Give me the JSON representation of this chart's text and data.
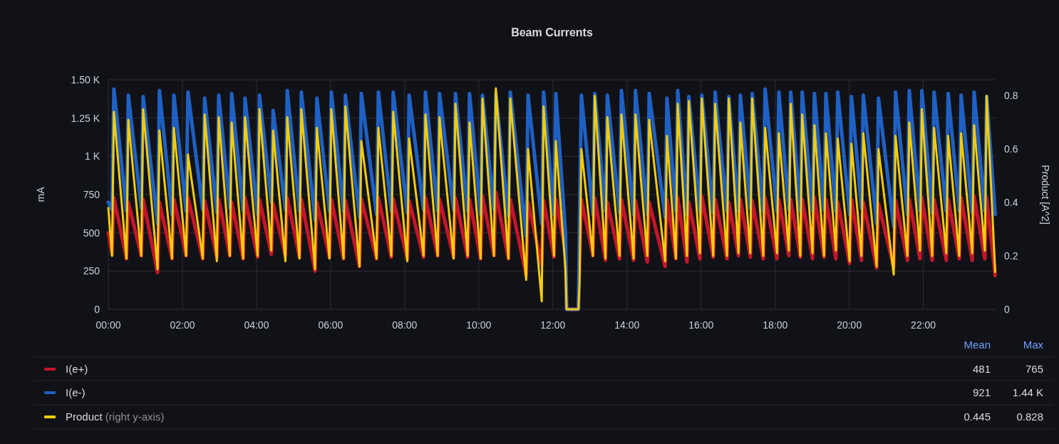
{
  "chart_data": {
    "type": "line",
    "title": "Beam Currents",
    "ylabel": "mA",
    "y2label": "Product [A^2]",
    "x": [
      0,
      0.1,
      0.15,
      0.49,
      0.54,
      0.89,
      0.94,
      1.33,
      1.38,
      1.72,
      1.77,
      2.1,
      2.15,
      2.55,
      2.6,
      2.93,
      2.98,
      3.28,
      3.33,
      3.64,
      3.69,
      4.03,
      4.08,
      4.4,
      4.45,
      4.78,
      4.83,
      5.16,
      5.21,
      5.58,
      5.63,
      5.97,
      6.02,
      6.35,
      6.4,
      6.78,
      6.83,
      7.24,
      7.29,
      7.64,
      7.69,
      8.07,
      8.12,
      8.51,
      8.56,
      8.89,
      8.94,
      9.32,
      9.37,
      9.7,
      9.75,
      10.05,
      10.1,
      10.41,
      10.46,
      10.8,
      10.85,
      11.28,
      11.33,
      11.7,
      11.75,
      12.03,
      12.08,
      12.34,
      12.37,
      12.69,
      12.72,
      12.77,
      13.08,
      13.13,
      13.42,
      13.47,
      13.8,
      13.85,
      14.18,
      14.23,
      14.55,
      14.6,
      15.03,
      15.08,
      15.32,
      15.37,
      15.62,
      15.67,
      15.97,
      16.02,
      16.33,
      16.38,
      16.7,
      16.75,
      17.01,
      17.06,
      17.33,
      17.38,
      17.68,
      17.73,
      18.05,
      18.1,
      18.37,
      18.42,
      18.68,
      18.73,
      19.01,
      19.06,
      19.32,
      19.37,
      19.64,
      19.69,
      20.01,
      20.06,
      20.33,
      20.38,
      20.74,
      20.79,
      21.2,
      21.25,
      21.57,
      21.62,
      21.91,
      21.96,
      22.24,
      22.29,
      22.62,
      22.67,
      22.97,
      23.02,
      23.32,
      23.37,
      23.66,
      23.71,
      23.94
    ],
    "xlim": [
      0,
      23.95
    ],
    "xticks": [
      {
        "value": 0,
        "label": "00:00"
      },
      {
        "value": 2,
        "label": "02:00"
      },
      {
        "value": 4,
        "label": "04:00"
      },
      {
        "value": 6,
        "label": "06:00"
      },
      {
        "value": 8,
        "label": "08:00"
      },
      {
        "value": 10,
        "label": "10:00"
      },
      {
        "value": 12,
        "label": "12:00"
      },
      {
        "value": 14,
        "label": "14:00"
      },
      {
        "value": 16,
        "label": "16:00"
      },
      {
        "value": 18,
        "label": "18:00"
      },
      {
        "value": 20,
        "label": "20:00"
      },
      {
        "value": 22,
        "label": "22:00"
      }
    ],
    "ylim": [
      0,
      1500
    ],
    "yticks": [
      0,
      250,
      500,
      750,
      {
        "value": 1000,
        "label": "1 K"
      },
      {
        "value": 1250,
        "label": "1.25 K"
      },
      {
        "value": 1500,
        "label": "1.50 K"
      }
    ],
    "y2lim": [
      0,
      0.86
    ],
    "y2ticks": [
      0,
      0.2,
      0.4,
      0.6,
      0.8
    ],
    "grid": true,
    "legend": "bottom",
    "series": [
      {
        "name": "I(e+)",
        "color": "#c4162a",
        "values": [
          500,
          360,
          730,
          330,
          700,
          350,
          720,
          240,
          700,
          330,
          720,
          350,
          730,
          330,
          710,
          340,
          720,
          350,
          700,
          330,
          730,
          340,
          720,
          360,
          690,
          350,
          730,
          340,
          720,
          250,
          700,
          340,
          720,
          330,
          710,
          280,
          720,
          330,
          730,
          340,
          720,
          330,
          710,
          340,
          730,
          350,
          720,
          340,
          730,
          340,
          720,
          330,
          740,
          350,
          765,
          330,
          720,
          220,
          700,
          290,
          710,
          340,
          720,
          380,
          0,
          0,
          300,
          720,
          350,
          730,
          320,
          700,
          330,
          720,
          320,
          710,
          310,
          700,
          280,
          720,
          330,
          730,
          310,
          700,
          330,
          740,
          340,
          720,
          330,
          700,
          350,
          720,
          340,
          710,
          330,
          730,
          330,
          720,
          350,
          720,
          340,
          720,
          330,
          730,
          340,
          720,
          330,
          700,
          300,
          720,
          320,
          700,
          270,
          690,
          275,
          710,
          320,
          720,
          330,
          730,
          320,
          720,
          320,
          720,
          330,
          730,
          320,
          740,
          330,
          730,
          220
        ]
      },
      {
        "name": "I(e-)",
        "color": "#1f60c4",
        "values": [
          700,
          650,
          1440,
          640,
          1400,
          660,
          1390,
          560,
          1430,
          620,
          1400,
          640,
          1420,
          650,
          1380,
          630,
          1400,
          660,
          1410,
          640,
          1380,
          620,
          1400,
          700,
          1300,
          650,
          1430,
          640,
          1420,
          580,
          1380,
          640,
          1420,
          640,
          1400,
          600,
          1410,
          620,
          1420,
          640,
          1420,
          630,
          1400,
          650,
          1420,
          640,
          1410,
          650,
          1410,
          640,
          1410,
          620,
          1400,
          650,
          1410,
          610,
          1420,
          480,
          1400,
          560,
          1420,
          620,
          1410,
          500,
          0,
          0,
          600,
          1400,
          620,
          1410,
          640,
          1400,
          630,
          1430,
          620,
          1430,
          620,
          1410,
          600,
          1380,
          640,
          1430,
          620,
          1390,
          640,
          1400,
          630,
          1420,
          640,
          1390,
          640,
          1400,
          660,
          1410,
          640,
          1440,
          640,
          1420,
          650,
          1420,
          640,
          1420,
          640,
          1410,
          650,
          1410,
          640,
          1420,
          620,
          1390,
          660,
          1400,
          560,
          1380,
          540,
          1420,
          620,
          1430,
          640,
          1430,
          630,
          1420,
          640,
          1410,
          640,
          1400,
          630,
          1420,
          640,
          1390,
          620
        ]
      },
      {
        "name": "Product",
        "color": "#f2cc0c",
        "axis": "y2",
        "values": [
          0.38,
          0.2,
          0.74,
          0.19,
          0.71,
          0.2,
          0.75,
          0.15,
          0.67,
          0.19,
          0.68,
          0.2,
          0.58,
          0.19,
          0.73,
          0.18,
          0.72,
          0.2,
          0.7,
          0.19,
          0.72,
          0.2,
          0.75,
          0.22,
          0.67,
          0.18,
          0.72,
          0.19,
          0.75,
          0.15,
          0.68,
          0.19,
          0.75,
          0.19,
          0.76,
          0.16,
          0.63,
          0.19,
          0.68,
          0.2,
          0.74,
          0.18,
          0.64,
          0.2,
          0.73,
          0.2,
          0.72,
          0.19,
          0.77,
          0.2,
          0.7,
          0.19,
          0.79,
          0.2,
          0.828,
          0.19,
          0.79,
          0.11,
          0.6,
          0.03,
          0.76,
          0.2,
          0.63,
          0.15,
          0,
          0,
          0.1,
          0.6,
          0.2,
          0.8,
          0.19,
          0.72,
          0.2,
          0.73,
          0.19,
          0.73,
          0.2,
          0.71,
          0.18,
          0.65,
          0.19,
          0.77,
          0.2,
          0.78,
          0.21,
          0.79,
          0.2,
          0.77,
          0.2,
          0.79,
          0.21,
          0.7,
          0.21,
          0.79,
          0.2,
          0.68,
          0.21,
          0.66,
          0.22,
          0.77,
          0.2,
          0.73,
          0.21,
          0.69,
          0.2,
          0.66,
          0.22,
          0.64,
          0.18,
          0.62,
          0.2,
          0.66,
          0.16,
          0.6,
          0.13,
          0.65,
          0.2,
          0.7,
          0.22,
          0.75,
          0.2,
          0.68,
          0.21,
          0.65,
          0.2,
          0.66,
          0.21,
          0.69,
          0.22,
          0.8,
          0.14
        ]
      }
    ],
    "annotations": [
      "Mean",
      "Max",
      "481",
      "765",
      "921",
      "1.44 K",
      "0.445",
      "0.828",
      "(right y-axis)"
    ]
  }
}
